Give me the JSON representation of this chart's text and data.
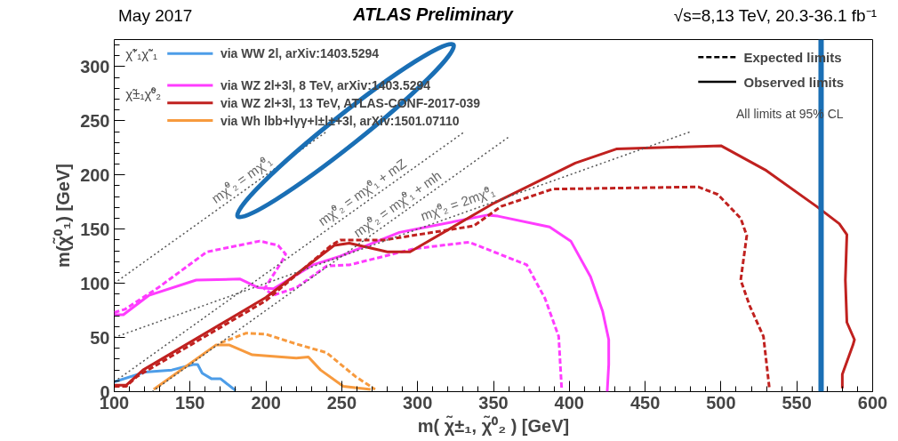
{
  "chart_data": {
    "type": "line",
    "title": "ATLAS Preliminary",
    "xlabel": "m( χ̃±₁, χ̃⁰₂ ) [GeV]",
    "ylabel": "m(χ̃⁰₁) [GeV]",
    "xlim": [
      100,
      600
    ],
    "ylim": [
      0,
      325
    ],
    "xticks": [
      100,
      150,
      200,
      250,
      300,
      350,
      400,
      450,
      500,
      550,
      600
    ],
    "yticks": [
      0,
      50,
      100,
      150,
      200,
      250,
      300
    ],
    "grid": false,
    "legend": "top left",
    "marker": "none",
    "series": [
      {
        "name": "via  WW    2l,   arXiv:1403.5294",
        "color": "#4d9de8",
        "line_style": "solid",
        "x": [
          100,
          120,
          138,
          152,
          155,
          158,
          164,
          170,
          180
        ],
        "values": [
          9,
          18,
          20,
          25,
          25,
          17,
          12,
          12,
          1
        ]
      },
      {
        "name": "via  WZ    2l+3l, 8 TeV, arXiv:1403.5294",
        "color": "#ff3cff",
        "line_style": "solid",
        "x": [
          100,
          106,
          123,
          154,
          183,
          195,
          205,
          231,
          249,
          288,
          346,
          353,
          387,
          401,
          414,
          422,
          426,
          426,
          425
        ],
        "values": [
          71,
          71,
          89,
          103,
          104,
          96,
          95,
          117,
          125,
          147,
          163,
          162,
          152,
          139,
          106,
          74,
          48,
          25,
          0
        ]
      },
      {
        "color": "#ff3cff",
        "line_style": "dashed",
        "x": [
          100,
          107,
          129,
          161,
          196,
          208,
          213,
          210,
          199,
          205,
          220,
          240,
          255,
          278,
          298,
          334,
          372,
          384,
          393,
          395
        ],
        "values": [
          73,
          76,
          96,
          129,
          139,
          135,
          127,
          119,
          95,
          89,
          96,
          116,
          117,
          125,
          132,
          138,
          117,
          86,
          51,
          2
        ]
      },
      {
        "name": "via  WZ    2l+3l, 13 TeV, ATLAS-CONF-2017-039",
        "color": "#c0211f",
        "line_style": "solid",
        "x": [
          100,
          108,
          119,
          200,
          245,
          255,
          280,
          295,
          349,
          404,
          431,
          500,
          530,
          563,
          578,
          583,
          582,
          583,
          588,
          587,
          580,
          580
        ],
        "values": [
          6,
          6,
          20,
          87,
          135,
          137,
          129,
          129,
          173,
          211,
          224,
          227,
          204,
          171,
          155,
          145,
          103,
          64,
          48,
          43,
          16,
          3
        ]
      },
      {
        "color": "#c0211f",
        "line_style": "dashed",
        "x": [
          100,
          108,
          115,
          200,
          243,
          249,
          278,
          337,
          355,
          389,
          485,
          498,
          513,
          517,
          513,
          519,
          528,
          532
        ],
        "values": [
          5,
          5,
          14,
          84,
          135,
          140,
          140,
          153,
          171,
          187,
          189,
          182,
          160,
          144,
          103,
          79,
          51,
          2
        ]
      },
      {
        "name": "via  Wh    lbb+lγγ+l±l±+3l, arXiv:1501.07110",
        "color": "#f79a3e",
        "line_style": "solid",
        "x": [
          126,
          167,
          176,
          191,
          220,
          228,
          236,
          251,
          269
        ],
        "values": [
          2,
          43,
          43,
          34,
          31,
          32,
          20,
          5,
          2
        ]
      },
      {
        "color": "#f79a3e",
        "line_style": "dashed",
        "x": [
          170,
          187,
          200,
          220,
          240,
          259,
          272
        ],
        "values": [
          45,
          54,
          53,
          44,
          36,
          14,
          2
        ]
      },
      {
        "color": "#555555",
        "line_style": "dotted",
        "x": [
          100,
          240
        ],
        "values": [
          100,
          240
        ]
      },
      {
        "color": "#555555",
        "line_style": "dotted",
        "x": [
          100,
          331
        ],
        "values": [
          9,
          240
        ]
      },
      {
        "color": "#555555",
        "line_style": "dotted",
        "x": [
          125,
          360
        ],
        "values": [
          0,
          235
        ]
      },
      {
        "color": "#555555",
        "line_style": "dotted",
        "x": [
          100,
          480
        ],
        "values": [
          50,
          240
        ]
      }
    ],
    "ref_lines": [
      {
        "axis": "x",
        "value": 566,
        "color": "#1a6fb5"
      }
    ],
    "annotations": [
      "May 2017",
      "√s=8,13 TeV, 20.3-36.1 fb⁻¹",
      "Expected limits",
      "Observed limits",
      "All limits at 95% CL",
      "χ̃⁺₁χ̃⁻₁",
      "χ̃±₁χ̃⁰₂",
      "mχ̃⁰₂ = mχ̃⁰₁",
      "mχ̃⁰₂ = mχ̃⁰₁ + mZ",
      "mχ̃⁰₂ = mχ̃⁰₁ + mh",
      "mχ̃⁰₂ = 2mχ̃⁰₁"
    ]
  }
}
